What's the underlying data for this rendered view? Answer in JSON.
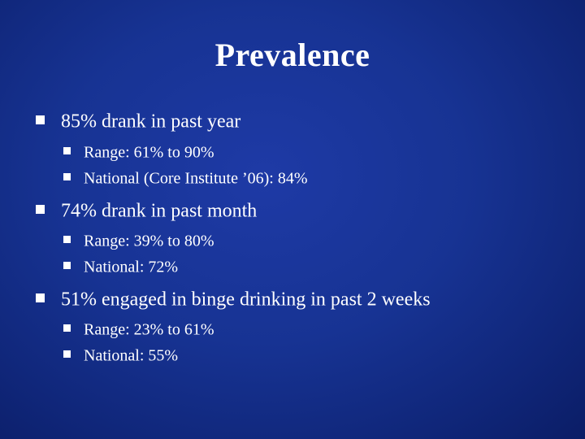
{
  "slide": {
    "title": "Prevalence",
    "bullets": [
      {
        "text": "85% drank in past year",
        "sub": [
          "Range:  61% to 90%",
          "National (Core Institute ’06):  84%"
        ]
      },
      {
        "text": "74% drank in past month",
        "sub": [
          "Range:  39% to 80%",
          "National:  72%"
        ]
      },
      {
        "text": "51% engaged in binge drinking in past 2 weeks",
        "sub": [
          "Range:  23% to 61%",
          "National:  55%"
        ]
      }
    ]
  },
  "colors": {
    "background": "#173393",
    "text": "#ffffff"
  },
  "icons": {
    "bullet": "square-bullet-icon"
  }
}
